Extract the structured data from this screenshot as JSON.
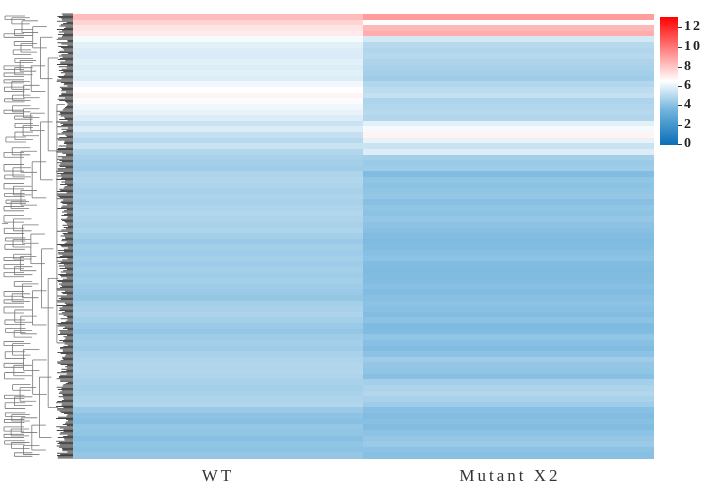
{
  "chart_data": {
    "type": "heatmap",
    "title": "",
    "columns": [
      "WT",
      "Mutant X2"
    ],
    "row_dendrogram": true,
    "colorbar": {
      "min": 0,
      "max": 13,
      "ticks": [
        0,
        2,
        4,
        6,
        8,
        10,
        12
      ],
      "colors": [
        "#0a6eb8",
        "#6fb3dc",
        "#ffffff",
        "#ff0000"
      ],
      "stops": [
        0,
        3.5,
        6.5,
        13
      ]
    },
    "rows_note": "approximate row-band values (top to bottom), one band per ~6px, [WT, Mutant X2]",
    "bands": [
      [
        8.2,
        9.0
      ],
      [
        7.6,
        6.5
      ],
      [
        7.2,
        8.3
      ],
      [
        7.0,
        8.6
      ],
      [
        6.3,
        5.6
      ],
      [
        5.9,
        5.0
      ],
      [
        5.8,
        4.9
      ],
      [
        5.7,
        5.0
      ],
      [
        5.9,
        4.8
      ],
      [
        5.8,
        4.7
      ],
      [
        5.9,
        4.6
      ],
      [
        5.8,
        4.5
      ],
      [
        6.2,
        4.9
      ],
      [
        6.5,
        5.1
      ],
      [
        6.8,
        5.3
      ],
      [
        6.4,
        4.8
      ],
      [
        6.2,
        4.9
      ],
      [
        6.0,
        5.0
      ],
      [
        5.8,
        4.9
      ],
      [
        5.4,
        5.9
      ],
      [
        5.8,
        6.3
      ],
      [
        5.3,
        6.8
      ],
      [
        5.0,
        6.0
      ],
      [
        5.4,
        5.4
      ],
      [
        4.9,
        5.8
      ],
      [
        4.7,
        4.6
      ],
      [
        4.6,
        4.4
      ],
      [
        4.5,
        4.5
      ],
      [
        4.8,
        3.9
      ],
      [
        4.9,
        4.2
      ],
      [
        4.8,
        4.1
      ],
      [
        4.7,
        4.2
      ],
      [
        4.8,
        4.3
      ],
      [
        4.7,
        4.0
      ],
      [
        4.8,
        4.2
      ],
      [
        4.9,
        4.1
      ],
      [
        4.8,
        4.3
      ],
      [
        4.7,
        4.1
      ],
      [
        4.8,
        4.0
      ],
      [
        4.6,
        3.9
      ],
      [
        4.4,
        3.8
      ],
      [
        4.6,
        3.9
      ],
      [
        4.5,
        4.0
      ],
      [
        4.6,
        4.1
      ],
      [
        4.5,
        3.9
      ],
      [
        4.6,
        3.8
      ],
      [
        4.5,
        3.9
      ],
      [
        4.6,
        3.9
      ],
      [
        4.5,
        4.0
      ],
      [
        4.4,
        3.9
      ],
      [
        4.3,
        4.0
      ],
      [
        4.6,
        4.1
      ],
      [
        4.7,
        4.0
      ],
      [
        4.8,
        3.9
      ],
      [
        4.6,
        4.1
      ],
      [
        4.4,
        3.8
      ],
      [
        4.3,
        3.9
      ],
      [
        4.5,
        4.2
      ],
      [
        4.6,
        4.0
      ],
      [
        4.5,
        3.9
      ],
      [
        4.7,
        4.1
      ],
      [
        4.8,
        4.5
      ],
      [
        4.9,
        4.3
      ],
      [
        4.9,
        4.2
      ],
      [
        4.8,
        4.0
      ],
      [
        4.7,
        4.6
      ],
      [
        4.6,
        4.8
      ],
      [
        4.7,
        4.9
      ],
      [
        4.8,
        4.7
      ],
      [
        4.9,
        4.5
      ],
      [
        4.4,
        4.0
      ],
      [
        4.1,
        3.9
      ],
      [
        4.0,
        4.0
      ],
      [
        4.3,
        3.9
      ],
      [
        4.2,
        4.1
      ],
      [
        4.0,
        4.3
      ],
      [
        4.2,
        4.4
      ],
      [
        4.1,
        4.1
      ],
      [
        4.3,
        4.0
      ]
    ]
  },
  "labels": {
    "col_wt": "WT",
    "col_mutant": "Mutant X2",
    "ticks": [
      "12",
      "10",
      "8",
      "6",
      "4",
      "2",
      "0"
    ]
  }
}
